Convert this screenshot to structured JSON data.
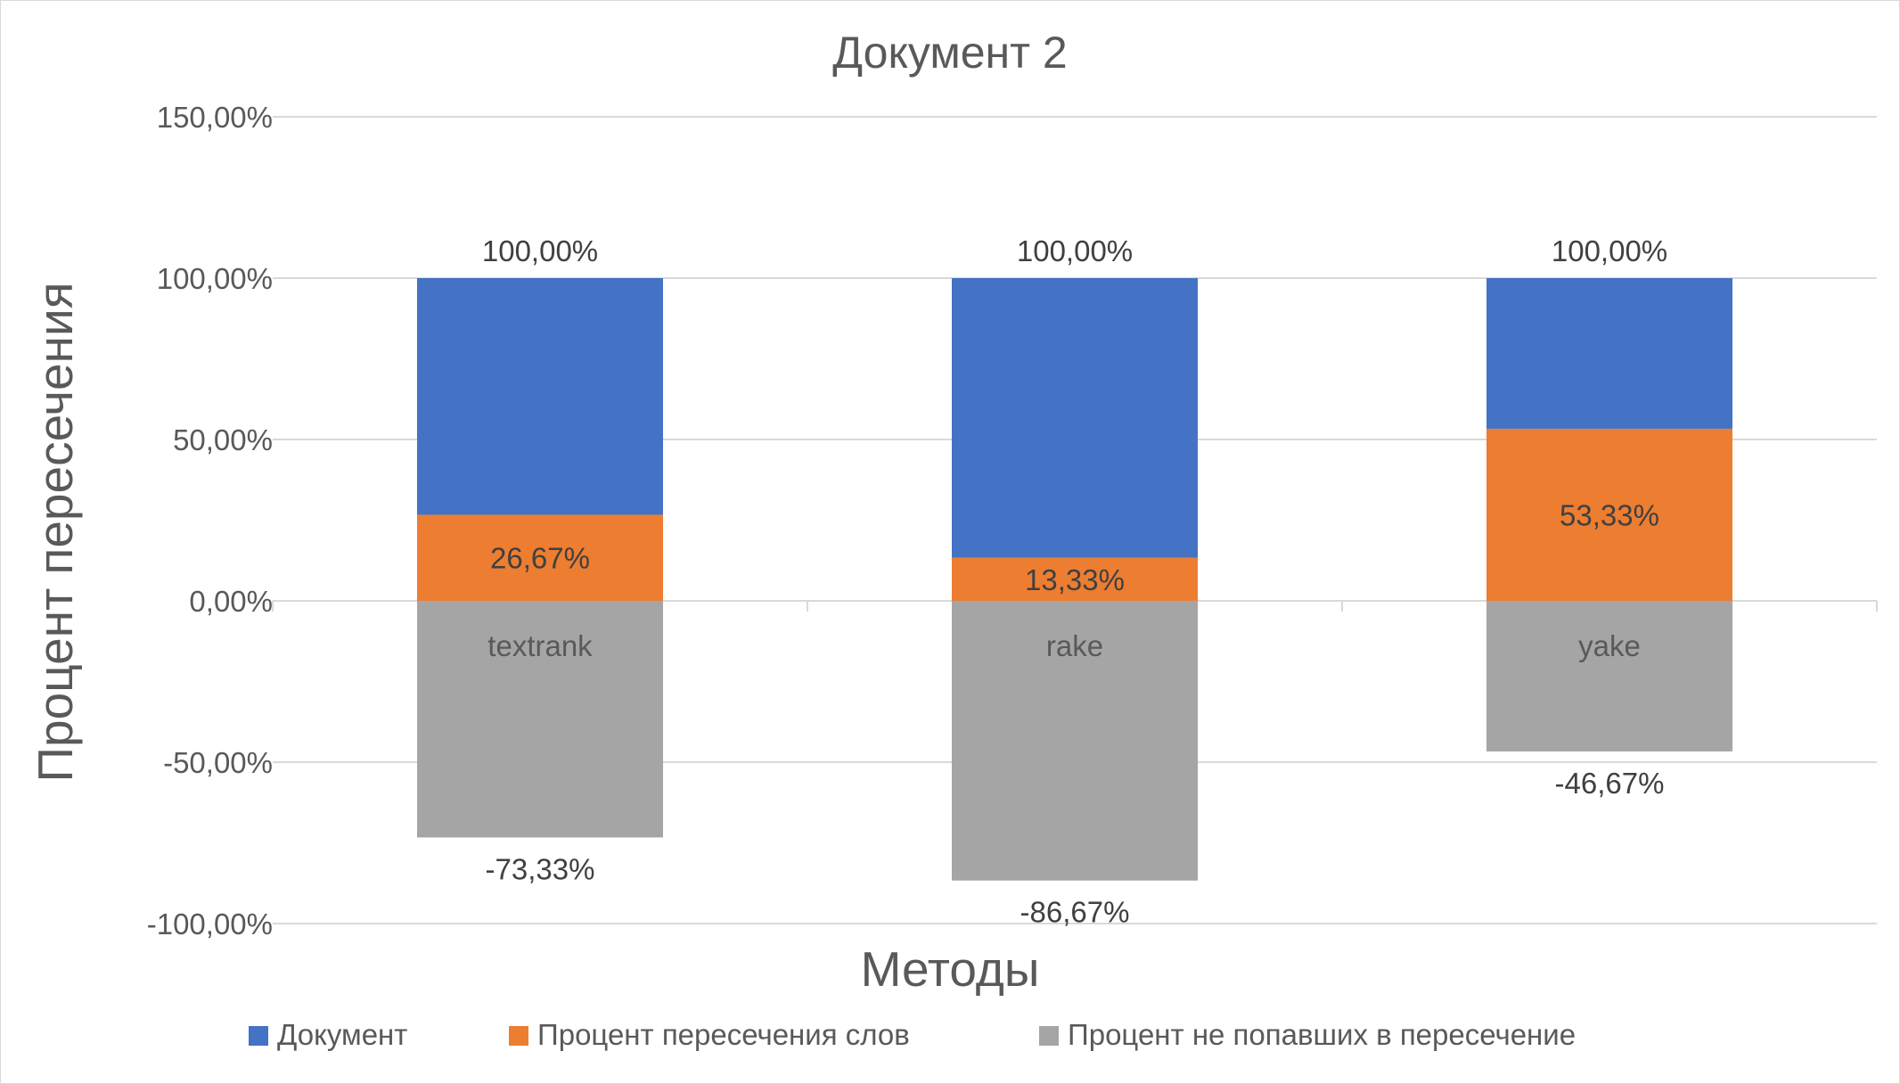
{
  "chart_data": {
    "type": "bar",
    "stacked": true,
    "title": "Документ 2",
    "xlabel": "Методы",
    "ylabel": "Процент пересечения",
    "categories": [
      "textrank",
      "rake",
      "yake"
    ],
    "ylim": [
      -100,
      150
    ],
    "yticks": [
      150,
      100,
      50,
      0,
      -50,
      -100
    ],
    "ytick_labels": [
      "150,00%",
      "100,00%",
      "50,00%",
      "0,00%",
      "-50,00%",
      "-100,00%"
    ],
    "grid": true,
    "legend_position": "bottom",
    "series": [
      {
        "name": "Документ",
        "color": "#4472c4",
        "values": [
          100,
          100,
          100
        ],
        "labels": [
          "100,00%",
          "100,00%",
          "100,00%"
        ]
      },
      {
        "name": "Процент пересечения слов",
        "color": "#ed7d31",
        "values": [
          26.67,
          13.33,
          53.33
        ],
        "labels": [
          "26,67%",
          "13,33%",
          "53,33%"
        ]
      },
      {
        "name": "Процент не попавших в пересечение",
        "color": "#a5a5a5",
        "values": [
          -73.33,
          -86.67,
          -46.67
        ],
        "labels": [
          "-73,33%",
          "-86,67%",
          "-46,67%"
        ]
      }
    ]
  }
}
